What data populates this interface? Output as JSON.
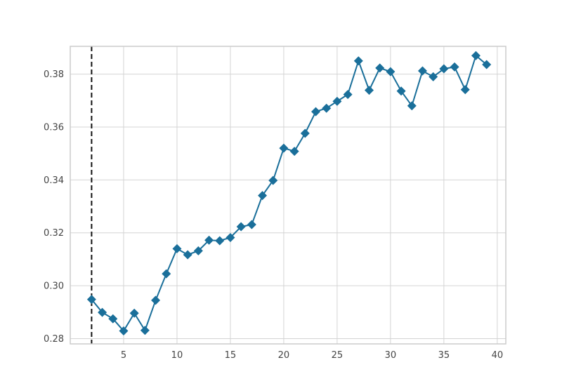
{
  "chart_data": {
    "type": "line",
    "title": "",
    "xlabel": "",
    "ylabel": "",
    "xlim": [
      0,
      40.8
    ],
    "ylim": [
      0.278,
      0.3905
    ],
    "x_ticks": [
      5,
      10,
      15,
      20,
      25,
      30,
      35,
      40
    ],
    "y_ticks": [
      0.28,
      0.3,
      0.32,
      0.34,
      0.36,
      0.38
    ],
    "x_tick_labels": [
      "5",
      "10",
      "15",
      "20",
      "25",
      "30",
      "35",
      "40"
    ],
    "y_tick_labels": [
      "0.28",
      "0.30",
      "0.32",
      "0.34",
      "0.36",
      "0.38"
    ],
    "grid": true,
    "vertical_marker": {
      "x": 2,
      "style": "dashed",
      "color": "#111111"
    },
    "series": [
      {
        "color": "#1a6f9a",
        "marker": "diamond",
        "x": [
          2,
          3,
          4,
          5,
          6,
          7,
          8,
          9,
          10,
          11,
          12,
          13,
          14,
          15,
          16,
          17,
          18,
          19,
          20,
          21,
          22,
          23,
          24,
          25,
          26,
          27,
          28,
          29,
          30,
          31,
          32,
          33,
          34,
          35,
          36,
          37,
          38,
          39
        ],
        "values": [
          0.2948,
          0.2899,
          0.2875,
          0.2829,
          0.2896,
          0.2831,
          0.2945,
          0.3045,
          0.314,
          0.3117,
          0.3132,
          0.3172,
          0.317,
          0.3182,
          0.3223,
          0.3231,
          0.3341,
          0.3398,
          0.352,
          0.3508,
          0.3576,
          0.3658,
          0.3671,
          0.3697,
          0.3723,
          0.385,
          0.3739,
          0.3823,
          0.3809,
          0.3736,
          0.368,
          0.3812,
          0.379,
          0.382,
          0.3827,
          0.3741,
          0.387,
          0.3836
        ]
      }
    ]
  }
}
